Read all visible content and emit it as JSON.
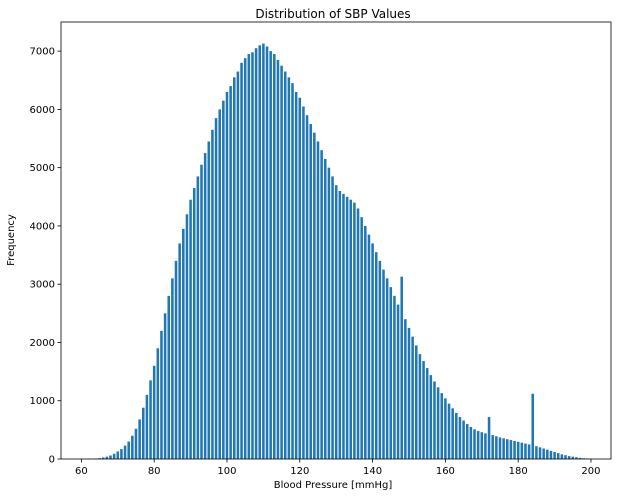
{
  "chart_data": {
    "type": "bar",
    "title": "Distribution of SBP Values",
    "xlabel": "Blood Pressure [mmHg]",
    "ylabel": "Frequency",
    "xlim": [
      54.4,
      205.5
    ],
    "ylim": [
      0,
      7500
    ],
    "xticks": [
      60,
      80,
      100,
      120,
      140,
      160,
      180,
      200
    ],
    "yticks": [
      0,
      1000,
      2000,
      3000,
      4000,
      5000,
      6000,
      7000
    ],
    "grid": false,
    "legend": "none",
    "bar_color": "#1f77b4",
    "bin_width": 0.7,
    "bins": [
      [
        60,
        3
      ],
      [
        62,
        5
      ],
      [
        64,
        8
      ],
      [
        65,
        15
      ],
      [
        66,
        25
      ],
      [
        67,
        40
      ],
      [
        68,
        60
      ],
      [
        69,
        90
      ],
      [
        70,
        130
      ],
      [
        71,
        170
      ],
      [
        72,
        230
      ],
      [
        73,
        300
      ],
      [
        74,
        400
      ],
      [
        75,
        520
      ],
      [
        76,
        680
      ],
      [
        77,
        880
      ],
      [
        78,
        1100
      ],
      [
        79,
        1350
      ],
      [
        80,
        1600
      ],
      [
        81,
        1900
      ],
      [
        82,
        2200
      ],
      [
        83,
        2500
      ],
      [
        84,
        2800
      ],
      [
        85,
        3100
      ],
      [
        86,
        3400
      ],
      [
        87,
        3700
      ],
      [
        88,
        3950
      ],
      [
        89,
        4200
      ],
      [
        90,
        4450
      ],
      [
        91,
        4650
      ],
      [
        92,
        4850
      ],
      [
        93,
        5050
      ],
      [
        94,
        5250
      ],
      [
        95,
        5450
      ],
      [
        96,
        5650
      ],
      [
        97,
        5850
      ],
      [
        98,
        6000
      ],
      [
        99,
        6150
      ],
      [
        100,
        6300
      ],
      [
        101,
        6400
      ],
      [
        102,
        6550
      ],
      [
        103,
        6650
      ],
      [
        104,
        6800
      ],
      [
        105,
        6880
      ],
      [
        106,
        6950
      ],
      [
        107,
        6980
      ],
      [
        108,
        7050
      ],
      [
        109,
        7100
      ],
      [
        110,
        7130
      ],
      [
        111,
        7080
      ],
      [
        112,
        7000
      ],
      [
        113,
        6950
      ],
      [
        114,
        6850
      ],
      [
        115,
        6750
      ],
      [
        116,
        6650
      ],
      [
        117,
        6550
      ],
      [
        118,
        6450
      ],
      [
        119,
        6300
      ],
      [
        120,
        6200
      ],
      [
        121,
        6050
      ],
      [
        122,
        5900
      ],
      [
        123,
        5750
      ],
      [
        124,
        5600
      ],
      [
        125,
        5450
      ],
      [
        126,
        5300
      ],
      [
        127,
        5150
      ],
      [
        128,
        5000
      ],
      [
        129,
        4850
      ],
      [
        130,
        4700
      ],
      [
        131,
        4600
      ],
      [
        132,
        4550
      ],
      [
        133,
        4500
      ],
      [
        134,
        4450
      ],
      [
        135,
        4400
      ],
      [
        136,
        4300
      ],
      [
        137,
        4150
      ],
      [
        138,
        4000
      ],
      [
        139,
        3850
      ],
      [
        140,
        3700
      ],
      [
        141,
        3550
      ],
      [
        142,
        3400
      ],
      [
        143,
        3250
      ],
      [
        144,
        3100
      ],
      [
        145,
        2950
      ],
      [
        146,
        2800
      ],
      [
        147,
        2650
      ],
      [
        148,
        3130
      ],
      [
        149,
        2400
      ],
      [
        150,
        2250
      ],
      [
        151,
        2100
      ],
      [
        152,
        1950
      ],
      [
        153,
        1800
      ],
      [
        154,
        1680
      ],
      [
        155,
        1560
      ],
      [
        156,
        1440
      ],
      [
        157,
        1330
      ],
      [
        158,
        1230
      ],
      [
        159,
        1130
      ],
      [
        160,
        1040
      ],
      [
        161,
        950
      ],
      [
        162,
        870
      ],
      [
        163,
        790
      ],
      [
        164,
        720
      ],
      [
        165,
        660
      ],
      [
        166,
        600
      ],
      [
        167,
        550
      ],
      [
        168,
        510
      ],
      [
        169,
        480
      ],
      [
        170,
        460
      ],
      [
        171,
        440
      ],
      [
        172,
        720
      ],
      [
        173,
        410
      ],
      [
        174,
        390
      ],
      [
        175,
        370
      ],
      [
        176,
        355
      ],
      [
        177,
        340
      ],
      [
        178,
        325
      ],
      [
        179,
        310
      ],
      [
        180,
        295
      ],
      [
        181,
        280
      ],
      [
        182,
        265
      ],
      [
        183,
        250
      ],
      [
        184,
        1120
      ],
      [
        185,
        220
      ],
      [
        186,
        200
      ],
      [
        187,
        180
      ],
      [
        188,
        160
      ],
      [
        189,
        140
      ],
      [
        190,
        120
      ],
      [
        191,
        100
      ],
      [
        192,
        80
      ],
      [
        193,
        65
      ],
      [
        194,
        50
      ],
      [
        195,
        40
      ],
      [
        196,
        30
      ],
      [
        197,
        20
      ],
      [
        198,
        12
      ],
      [
        199,
        6
      ],
      [
        200,
        3
      ]
    ]
  }
}
